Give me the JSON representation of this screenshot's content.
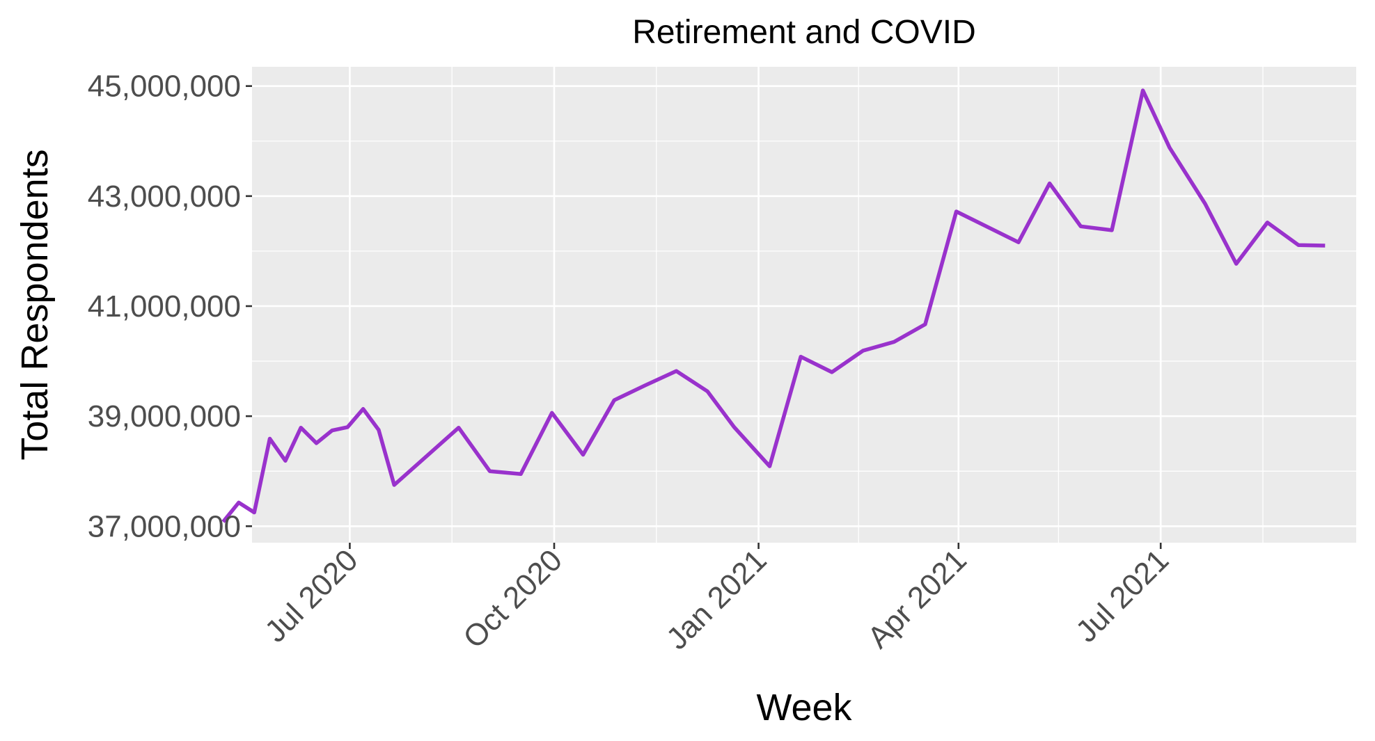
{
  "chart_data": {
    "type": "line",
    "title": "Retirement and COVID",
    "xlabel": "Week",
    "ylabel": "Total Respondents",
    "x_type": "date",
    "xlim": [
      "2020-05-18",
      "2021-09-27"
    ],
    "ylim": [
      36700000,
      45350000
    ],
    "x_ticks": [
      {
        "date": "2020-07-01",
        "label": "Jul 2020"
      },
      {
        "date": "2020-10-01",
        "label": "Oct 2020"
      },
      {
        "date": "2021-01-01",
        "label": "Jan 2021"
      },
      {
        "date": "2021-04-01",
        "label": "Apr 2021"
      },
      {
        "date": "2021-07-01",
        "label": "Jul 2021"
      }
    ],
    "x_minor_ticks": [
      "2020-05-16",
      "2020-08-16",
      "2020-11-16",
      "2021-02-15",
      "2021-05-16",
      "2021-08-16"
    ],
    "y_ticks": [
      {
        "value": 37000000,
        "label": "37,000,000"
      },
      {
        "value": 39000000,
        "label": "39,000,000"
      },
      {
        "value": 41000000,
        "label": "41,000,000"
      },
      {
        "value": 43000000,
        "label": "43,000,000"
      },
      {
        "value": 45000000,
        "label": "45,000,000"
      }
    ],
    "y_minor_ticks": [
      38000000,
      40000000,
      42000000,
      44000000
    ],
    "grid": true,
    "background": "#ebebeb",
    "series": [
      {
        "color": "#9932cc",
        "x": [
          "2020-05-05",
          "2020-05-12",
          "2020-05-19",
          "2020-05-26",
          "2020-06-02",
          "2020-06-09",
          "2020-06-16",
          "2020-06-23",
          "2020-06-30",
          "2020-07-07",
          "2020-07-14",
          "2020-07-21",
          "2020-08-19",
          "2020-09-02",
          "2020-09-16",
          "2020-09-30",
          "2020-10-14",
          "2020-10-28",
          "2020-11-11",
          "2020-11-25",
          "2020-12-09",
          "2020-12-21",
          "2021-01-06",
          "2021-01-20",
          "2021-02-03",
          "2021-02-17",
          "2021-03-03",
          "2021-03-17",
          "2021-03-31",
          "2021-04-28",
          "2021-05-12",
          "2021-05-26",
          "2021-06-09",
          "2021-06-23",
          "2021-07-05",
          "2021-07-21",
          "2021-08-04",
          "2021-08-18",
          "2021-09-01",
          "2021-09-13"
        ],
        "y": [
          37080000,
          37430000,
          37250000,
          38590000,
          38190000,
          38790000,
          38510000,
          38740000,
          38800000,
          39130000,
          38750000,
          37750000,
          38790000,
          38000000,
          37950000,
          39060000,
          38300000,
          39290000,
          39560000,
          39820000,
          39450000,
          38800000,
          38090000,
          40080000,
          39800000,
          40190000,
          40350000,
          40670000,
          42720000,
          42160000,
          43230000,
          42450000,
          42380000,
          44920000,
          43880000,
          42860000,
          41770000,
          42520000,
          42110000,
          42100000
        ]
      }
    ]
  }
}
